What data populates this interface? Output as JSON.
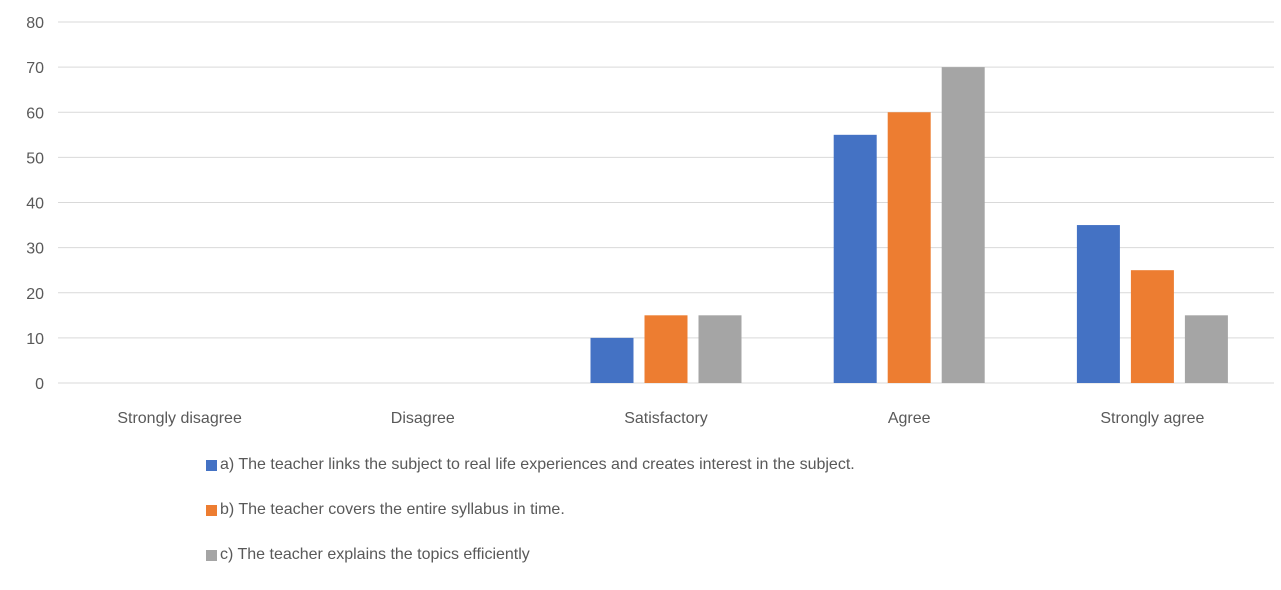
{
  "chart_data": {
    "type": "bar",
    "categories": [
      "Strongly disagree",
      "Disagree",
      "Satisfactory",
      "Agree",
      "Strongly agree"
    ],
    "series": [
      {
        "name": "a) The teacher links the subject to real life experiences and creates interest in the subject.",
        "color": "#4472C4",
        "values": [
          0,
          0,
          10,
          55,
          35
        ]
      },
      {
        "name": "b) The teacher covers the entire syllabus in time.",
        "color": "#ED7D31",
        "values": [
          0,
          0,
          15,
          60,
          25
        ]
      },
      {
        "name": "c) The teacher explains the topics efficiently",
        "color": "#A5A5A5",
        "values": [
          0,
          0,
          15,
          70,
          15
        ]
      }
    ],
    "ylim": [
      0,
      80
    ],
    "yticks": [
      0,
      10,
      20,
      30,
      40,
      50,
      60,
      70,
      80
    ],
    "grid": true,
    "legend_position": "bottom"
  }
}
